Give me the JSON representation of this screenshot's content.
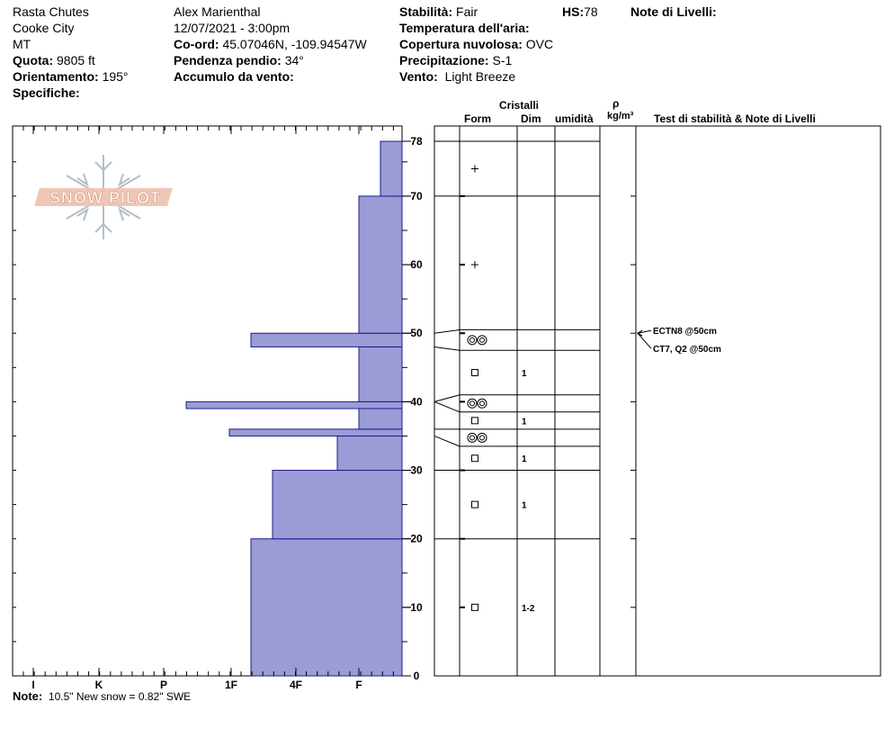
{
  "header": {
    "location": "Rasta Chutes",
    "region": "Cooke City",
    "state": "MT",
    "elevation_label": "Quota:",
    "elevation": "9805 ft",
    "aspect_label": "Orientamento:",
    "aspect": "195°",
    "specifics_label": "Specifiche:",
    "observer": "Alex Marienthal",
    "datetime": "12/07/2021 - 3:00pm",
    "coords_label": "Co-ord:",
    "coords": "45.07046N, -109.94547W",
    "slope_label": "Pendenza pendio:",
    "slope": "34°",
    "wind_loading_label": "Accumulo da vento:",
    "stability_label": "Stabilità:",
    "stability": "Fair",
    "air_temp_label": "Temperatura dell'aria:",
    "sky_label": "Copertura nuvolosa:",
    "sky": "OVC",
    "precip_label": "Precipitazione:",
    "precip": "S-1",
    "wind_label": "Vento:",
    "wind": "Light Breeze",
    "hs_label": "HS:",
    "hs": "78",
    "layer_notes_label": "Note di Livelli:"
  },
  "columns": {
    "crystals": "Cristalli",
    "form": "Form",
    "size": "Dim",
    "moisture": "umidità",
    "rho": "ρ",
    "density_unit": "kg/m³",
    "tests": "Test di stabilità & Note di Livelli"
  },
  "logo_text": "SNOW PILOT",
  "note_label": "Note:",
  "note": "10.5\" New snow = 0.82\" SWE",
  "colors": {
    "fill": "#9b9bd6",
    "stroke": "#1c1c8c"
  },
  "chart_data": {
    "type": "bar",
    "x_axis_ticks": [
      "I",
      "K",
      "P",
      "1F",
      "4F",
      "F"
    ],
    "y_ticks": [
      0,
      10,
      20,
      30,
      40,
      50,
      60,
      70,
      78
    ],
    "ylim": [
      0,
      80
    ],
    "hardness_profile": [
      {
        "bottom": 0,
        "top": 20,
        "hardness": "1F-"
      },
      {
        "bottom": 20,
        "top": 30,
        "hardness": "4F+"
      },
      {
        "bottom": 30,
        "top": 35,
        "hardness": "F+"
      },
      {
        "bottom": 35,
        "top": 36,
        "hardness": "1F"
      },
      {
        "bottom": 36,
        "top": 39,
        "hardness": "F"
      },
      {
        "bottom": 39,
        "top": 40,
        "hardness": "P-"
      },
      {
        "bottom": 40,
        "top": 48,
        "hardness": "F"
      },
      {
        "bottom": 48,
        "top": 50,
        "hardness": "1F-"
      },
      {
        "bottom": 50,
        "top": 70,
        "hardness": "F"
      },
      {
        "bottom": 70,
        "top": 78,
        "hardness": "F-"
      }
    ],
    "layer_boundaries": [
      20,
      30,
      33.5,
      36,
      38.5,
      41,
      47.5,
      50.5,
      70,
      78
    ],
    "crystals": [
      {
        "bottom": 0,
        "top": 20,
        "form": "square",
        "size": "1-2"
      },
      {
        "bottom": 20,
        "top": 30,
        "form": "square",
        "size": "1"
      },
      {
        "bottom": 30,
        "top": 33.5,
        "form": "square",
        "size": "1"
      },
      {
        "bottom": 33.5,
        "top": 36,
        "form": "rounded-pair",
        "size": ""
      },
      {
        "bottom": 36,
        "top": 38.5,
        "form": "square",
        "size": "1"
      },
      {
        "bottom": 38.5,
        "top": 41,
        "form": "rounded-pair",
        "size": ""
      },
      {
        "bottom": 41,
        "top": 47.5,
        "form": "square",
        "size": "1"
      },
      {
        "bottom": 47.5,
        "top": 50.5,
        "form": "rounded-pair",
        "size": ""
      },
      {
        "bottom": 50.5,
        "top": 70,
        "form": "plus",
        "size": ""
      },
      {
        "bottom": 70,
        "top": 78,
        "form": "plus",
        "size": ""
      }
    ],
    "stability_tests": [
      {
        "depth": 50,
        "text": "ECTN8 @50cm"
      },
      {
        "depth": 50,
        "text": "CT7, Q2 @50cm"
      }
    ]
  }
}
